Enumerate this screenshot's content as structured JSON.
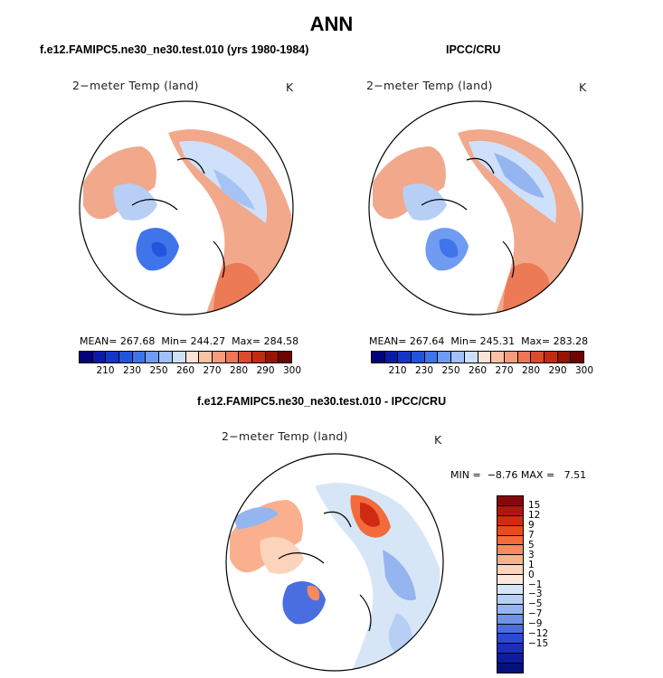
{
  "title": "ANN",
  "panels": [
    {
      "id": "model",
      "title": "f.e12.FAMIPC5.ne30_ne30.test.010 (yrs 1980-1984)",
      "variable": "2−meter Temp (land)",
      "units": "K",
      "stats": {
        "mean_label": "MEAN=",
        "mean": "267.68",
        "min_label": "Min=",
        "min": "244.27",
        "max_label": "Max=",
        "max": "284.58"
      }
    },
    {
      "id": "obs",
      "title": "IPCC/CRU",
      "variable": "2−meter Temp (land)",
      "units": "K",
      "stats": {
        "mean_label": "MEAN=",
        "mean": "267.64",
        "min_label": "Min=",
        "min": "245.31",
        "max_label": "Max=",
        "max": "283.28"
      }
    },
    {
      "id": "diff",
      "title": "f.e12.FAMIPC5.ne30_ne30.test.010 - IPCC/CRU",
      "variable": "2−meter Temp (land)",
      "units": "K",
      "stats": {
        "min_label": "MIN =",
        "min": "−8.76",
        "max_label": "MAX =",
        "max": "7.51"
      }
    }
  ],
  "abs_colorbar": {
    "colors": [
      "#04047a",
      "#0a1aa8",
      "#1436c8",
      "#2255dd",
      "#3f74ea",
      "#6f9cf2",
      "#a0c0f6",
      "#cfdffa",
      "#fbe2d6",
      "#f9c2a6",
      "#f49c7c",
      "#ec7655",
      "#dd4a2c",
      "#c42a12",
      "#9a1200",
      "#6e0500"
    ],
    "tick_labels": [
      "210",
      "230",
      "250",
      "260",
      "270",
      "280",
      "290",
      "300"
    ]
  },
  "diff_colorbar": {
    "colors": [
      "#86080c",
      "#b0160e",
      "#d02a12",
      "#ea4a1e",
      "#f36b3a",
      "#f78a5e",
      "#fab08e",
      "#fcd3bb",
      "#fde9dc",
      "#d7e6f7",
      "#b7cff5",
      "#94b5f0",
      "#6e93e8",
      "#4a6ee0",
      "#2b4bd4",
      "#1a2fbe",
      "#0e1c9e",
      "#05107c"
    ],
    "tick_labels": [
      "15",
      "12",
      "9",
      "7",
      "5",
      "3",
      "1",
      "0",
      "−1",
      "−3",
      "−5",
      "−7",
      "−9",
      "−12",
      "−15"
    ]
  }
}
